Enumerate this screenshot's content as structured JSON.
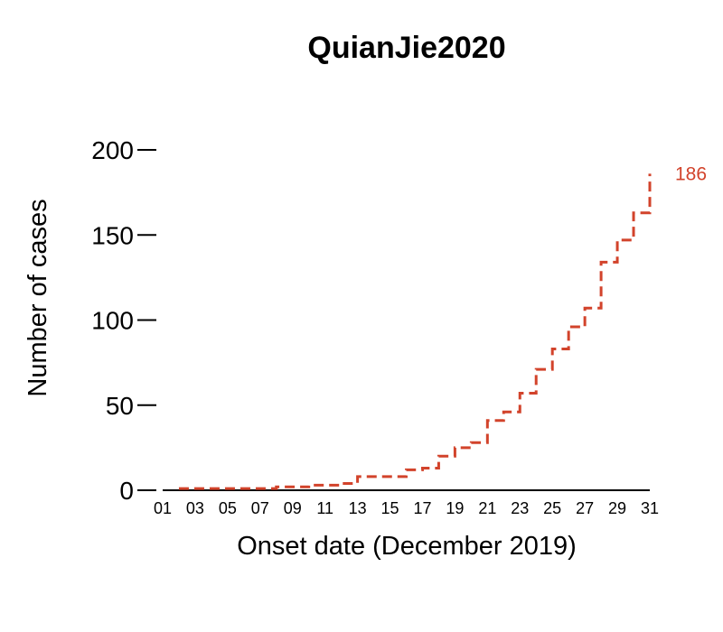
{
  "chart_data": {
    "type": "line",
    "style": "step-dashed",
    "title": "QuianJie2020",
    "xlabel": "Onset date (December 2019)",
    "ylabel": "Number of cases",
    "ylim": [
      0,
      200
    ],
    "yticks": [
      0,
      50,
      100,
      150,
      200
    ],
    "xlim": [
      1,
      31
    ],
    "xticks": [
      "01",
      "03",
      "05",
      "07",
      "09",
      "11",
      "13",
      "15",
      "17",
      "19",
      "21",
      "23",
      "25",
      "27",
      "29",
      "31"
    ],
    "grid": false,
    "legend": "none",
    "series": [
      {
        "color": "#d2432b",
        "x": [
          2,
          3,
          4,
          5,
          6,
          7,
          8,
          9,
          10,
          11,
          12,
          13,
          14,
          15,
          16,
          17,
          18,
          19,
          20,
          21,
          22,
          23,
          24,
          25,
          26,
          27,
          28,
          29,
          30
        ],
        "values": [
          1,
          1,
          1,
          1,
          1,
          1,
          2,
          2,
          3,
          3,
          4,
          8,
          8,
          8,
          12,
          13,
          20,
          25,
          28,
          41,
          46,
          57,
          71,
          83,
          96,
          107,
          134,
          147,
          163
        ],
        "end_value": 186,
        "end_label": "186"
      }
    ]
  }
}
